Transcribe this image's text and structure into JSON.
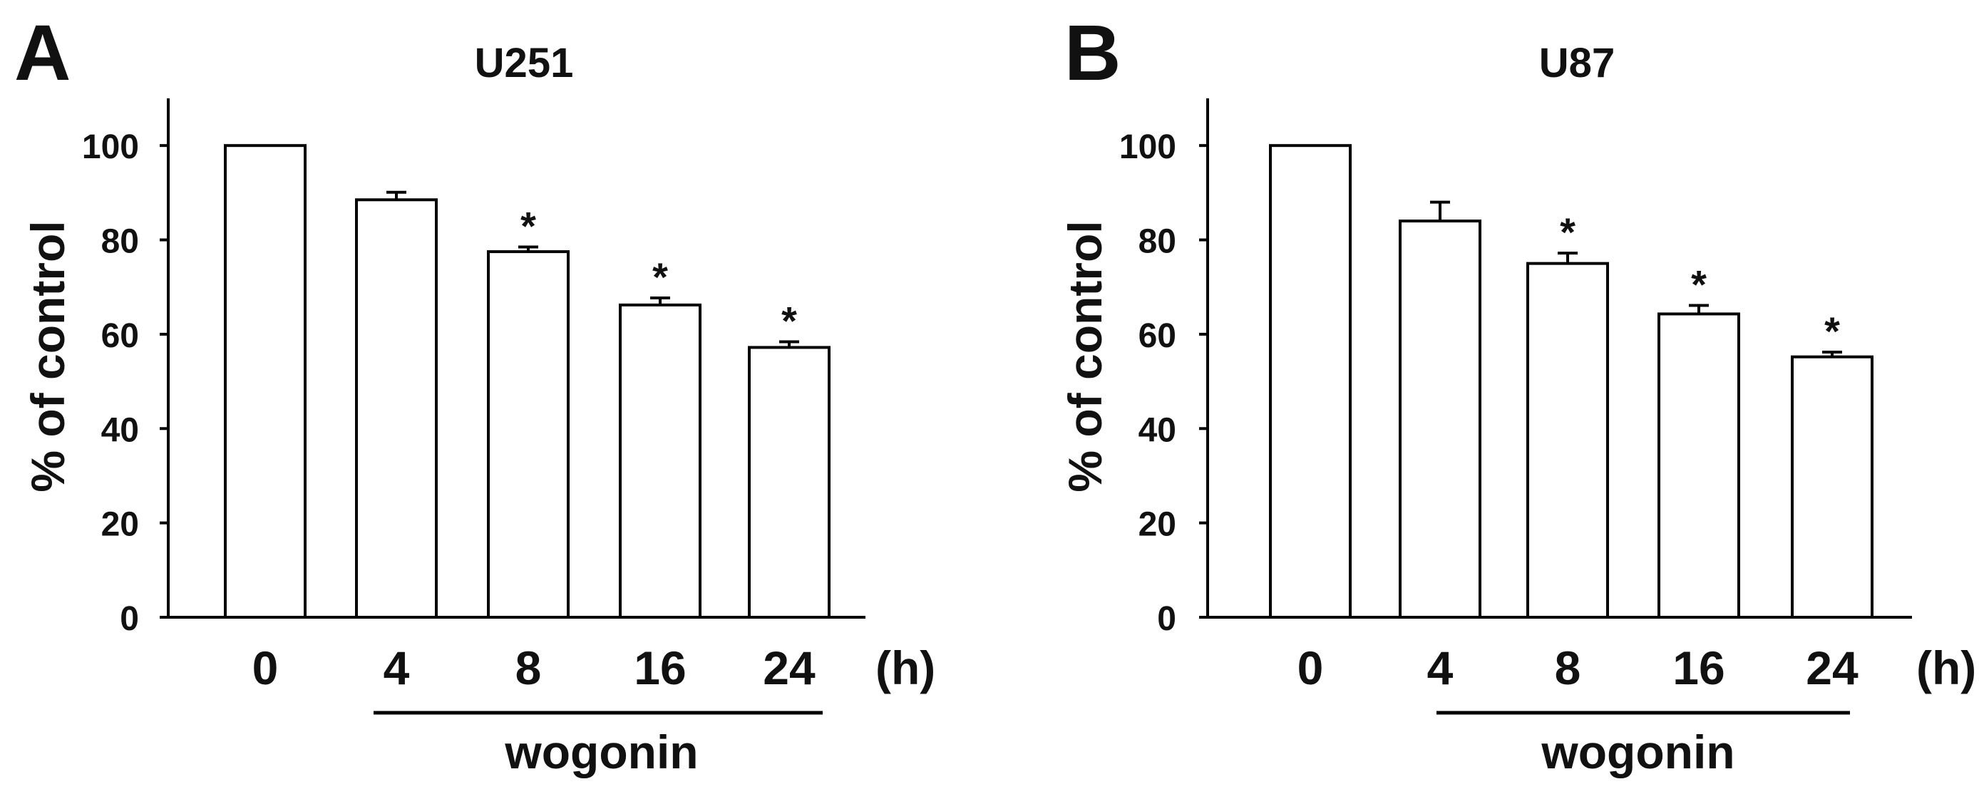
{
  "chart_data": [
    {
      "panel_label": "A",
      "type": "bar",
      "title": "U251",
      "ylabel": "% of control",
      "xlabel": "",
      "x_unit": "(h)",
      "group_label": "wogonin",
      "group_categories": [
        "4",
        "8",
        "16",
        "24"
      ],
      "categories": [
        "0",
        "4",
        "8",
        "16",
        "24"
      ],
      "values": [
        100,
        88.5,
        77.5,
        66.2,
        57.2
      ],
      "errors": [
        0,
        1.6,
        1.0,
        1.5,
        1.2
      ],
      "significant": [
        false,
        false,
        true,
        true,
        true
      ],
      "significance_marker": "*",
      "ylim": [
        0,
        110
      ],
      "yticks": [
        "0",
        "20",
        "40",
        "60",
        "80",
        "100"
      ],
      "grid": false,
      "legend": "none",
      "bar_fill": "#ffffff",
      "bar_stroke": "#000000"
    },
    {
      "panel_label": "B",
      "type": "bar",
      "title": "U87",
      "ylabel": "% of control",
      "xlabel": "",
      "x_unit": "(h)",
      "group_label": "wogonin",
      "group_categories": [
        "4",
        "8",
        "16",
        "24"
      ],
      "categories": [
        "0",
        "4",
        "8",
        "16",
        "24"
      ],
      "values": [
        100,
        84,
        75,
        64.3,
        55.2
      ],
      "errors": [
        0,
        4.0,
        2.2,
        1.8,
        1.0
      ],
      "significant": [
        false,
        false,
        true,
        true,
        true
      ],
      "significance_marker": "*",
      "ylim": [
        0,
        110
      ],
      "yticks": [
        "0",
        "20",
        "40",
        "60",
        "80",
        "100"
      ],
      "grid": false,
      "legend": "none",
      "bar_fill": "#ffffff",
      "bar_stroke": "#000000"
    }
  ]
}
